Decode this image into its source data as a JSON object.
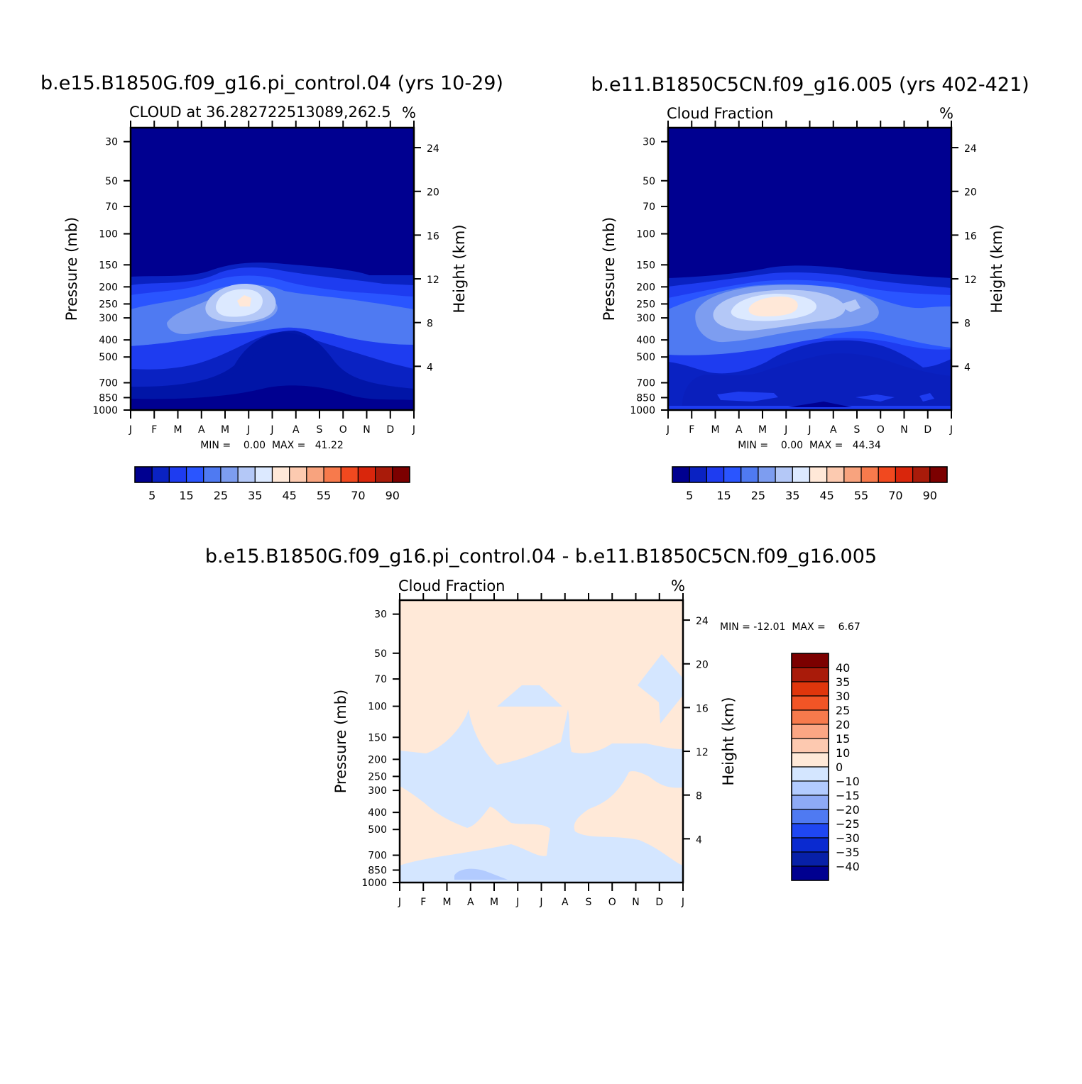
{
  "chart_data": [
    {
      "type": "heatmap",
      "title": "b.e15.B1850G.f09_g16.pi_control.04 (yrs 10-29)",
      "subtitle": "CLOUD at 36.282722513089,262.5",
      "units": "%",
      "ylabel": "Pressure (mb)",
      "ylabel_right": "Height (km)",
      "x": [
        "J",
        "F",
        "M",
        "A",
        "M",
        "J",
        "J",
        "A",
        "S",
        "O",
        "N",
        "D",
        "J"
      ],
      "y": [
        30,
        50,
        70,
        100,
        150,
        200,
        250,
        300,
        400,
        500,
        700,
        850,
        1000
      ],
      "y_right": [
        24,
        20,
        16,
        12,
        8,
        4
      ],
      "ylim": [
        1000,
        25
      ],
      "stats": "MIN =    0.00  MAX =   41.22",
      "min": 0.0,
      "max": 41.22,
      "colorbar": [
        5,
        15,
        25,
        35,
        45,
        55,
        70,
        90
      ],
      "colors": [
        "#000090",
        "#0a22c2",
        "#1e3cf0",
        "#2a55ff",
        "#4f7af2",
        "#7d9df0",
        "#b4c8f7",
        "#dce9ff",
        "#ffe8d8",
        "#fccab0",
        "#f8a37e",
        "#f77a4c",
        "#f1491f",
        "#d9260c",
        "#a91b0a",
        "#7c0000"
      ]
    },
    {
      "type": "heatmap",
      "title": "b.e11.B1850C5CN.f09_g16.005 (yrs 402-421)",
      "subtitle": "Cloud Fraction",
      "units": "%",
      "ylabel": "Pressure (mb)",
      "ylabel_right": "Height (km)",
      "x": [
        "J",
        "F",
        "M",
        "A",
        "M",
        "J",
        "J",
        "A",
        "S",
        "O",
        "N",
        "D",
        "J"
      ],
      "y": [
        30,
        50,
        70,
        100,
        150,
        200,
        250,
        300,
        400,
        500,
        700,
        850,
        1000
      ],
      "y_right": [
        24,
        20,
        16,
        12,
        8,
        4
      ],
      "ylim": [
        1000,
        25
      ],
      "stats": "MIN =    0.00  MAX =   44.34",
      "min": 0.0,
      "max": 44.34,
      "colorbar": [
        5,
        15,
        25,
        35,
        45,
        55,
        70,
        90
      ]
    },
    {
      "type": "heatmap",
      "title": "b.e15.B1850G.f09_g16.pi_control.04 - b.e11.B1850C5CN.f09_g16.005",
      "subtitle": "Cloud Fraction",
      "units": "%",
      "ylabel": "Pressure (mb)",
      "ylabel_right": "Height (km)",
      "x": [
        "J",
        "F",
        "M",
        "A",
        "M",
        "J",
        "J",
        "A",
        "S",
        "O",
        "N",
        "D",
        "J"
      ],
      "y": [
        30,
        50,
        70,
        100,
        150,
        200,
        250,
        300,
        400,
        500,
        700,
        850,
        1000
      ],
      "y_right": [
        24,
        20,
        16,
        12,
        8,
        4
      ],
      "ylim": [
        1000,
        25
      ],
      "stats": "MIN = -12.01  MAX =    6.67",
      "min": -12.01,
      "max": 6.67,
      "colorbar": [
        40,
        35,
        30,
        25,
        20,
        15,
        10,
        0,
        -10,
        -15,
        -20,
        -25,
        -30,
        -35,
        -40
      ],
      "colors": [
        "#7c0000",
        "#a91b0a",
        "#e0360c",
        "#f25526",
        "#f77a4c",
        "#fba684",
        "#fdc9b0",
        "#ffe9d8",
        "#d4e6ff",
        "#b2cbff",
        "#8eaaf6",
        "#4f7af2",
        "#1f47f2",
        "#0a2ad0",
        "#0720a8",
        "#000090"
      ]
    }
  ]
}
